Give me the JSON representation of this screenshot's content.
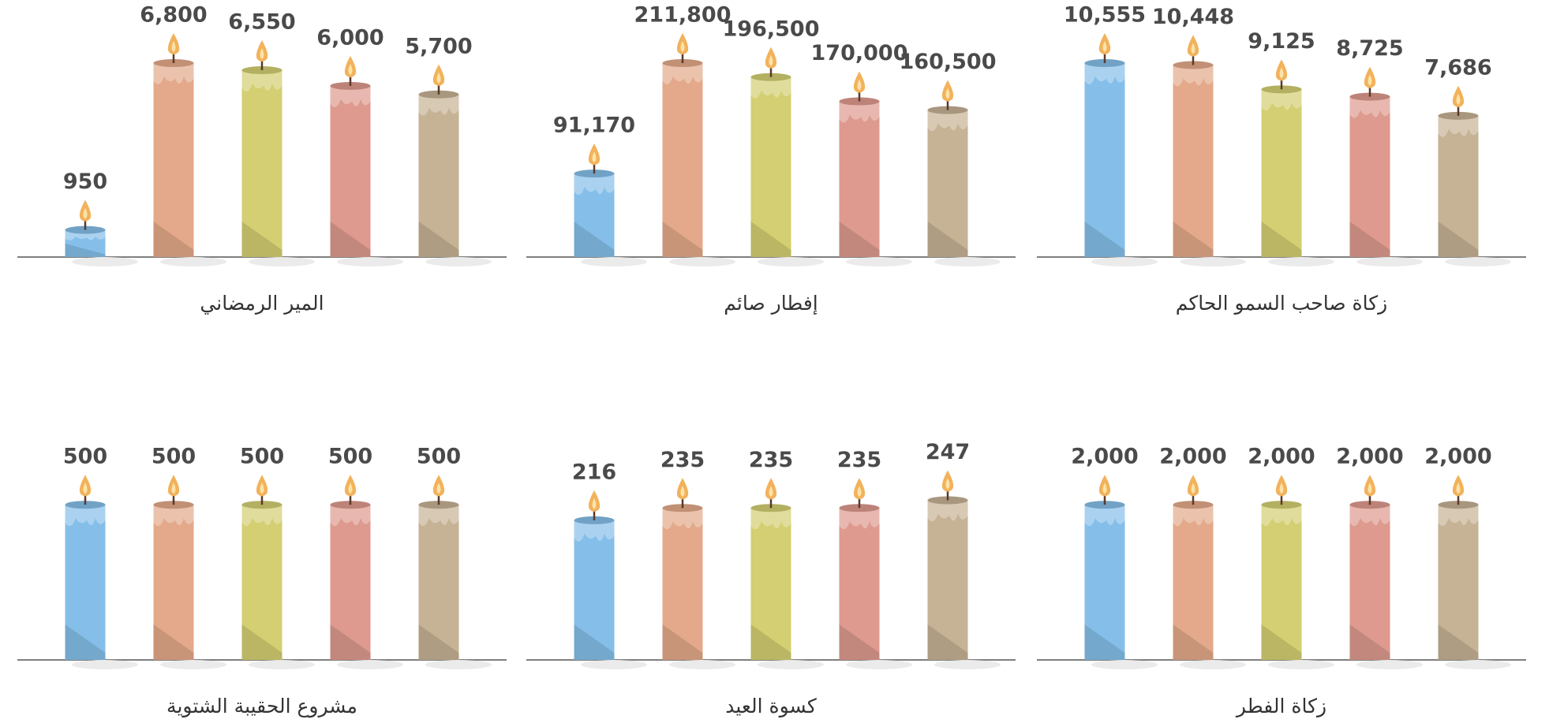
{
  "chart_data": [
    {
      "type": "bar",
      "title": "زكاة صاحب السمو الحاكم",
      "values": [
        10555,
        10448,
        9125,
        8725,
        7686
      ],
      "value_labels": [
        "10,555",
        "10,448",
        "9,125",
        "8,725",
        "7,686"
      ],
      "colors": [
        "#85bfe9",
        "#e3a98a",
        "#d3cf72",
        "#de9a8e",
        "#c6b294"
      ],
      "ylim": [
        0,
        10555
      ]
    },
    {
      "type": "bar",
      "title": "إفطار صائم",
      "values": [
        91170,
        211800,
        196500,
        170000,
        160500
      ],
      "value_labels": [
        "91,170",
        "211,800",
        "196,500",
        "170,000",
        "160,500"
      ],
      "colors": [
        "#85bfe9",
        "#e3a98a",
        "#d3cf72",
        "#de9a8e",
        "#c6b294"
      ],
      "ylim": [
        0,
        211800
      ]
    },
    {
      "type": "bar",
      "title": "المير الرمضاني",
      "values": [
        950,
        6800,
        6550,
        6000,
        5700
      ],
      "value_labels": [
        "950",
        "6,800",
        "6,550",
        "6,000",
        "5,700"
      ],
      "colors": [
        "#85bfe9",
        "#e3a98a",
        "#d3cf72",
        "#de9a8e",
        "#c6b294"
      ],
      "ylim": [
        0,
        6800
      ]
    },
    {
      "type": "bar",
      "title": "زكاة الفطر",
      "values": [
        2000,
        2000,
        2000,
        2000,
        2000
      ],
      "value_labels": [
        "2,000",
        "2,000",
        "2,000",
        "2,000",
        "2,000"
      ],
      "colors": [
        "#85bfe9",
        "#e3a98a",
        "#d3cf72",
        "#de9a8e",
        "#c6b294"
      ],
      "ylim": [
        0,
        2500
      ]
    },
    {
      "type": "bar",
      "title": "كسوة العيد",
      "values": [
        216,
        235,
        235,
        235,
        247
      ],
      "colors": [
        "#85bfe9",
        "#e3a98a",
        "#d3cf72",
        "#de9a8e",
        "#c6b294"
      ],
      "ylim": [
        0,
        300
      ]
    },
    {
      "type": "bar",
      "title": "مشروع الحقيبة الشتوية",
      "values": [
        500,
        500,
        500,
        500,
        500
      ],
      "colors": [
        "#85bfe9",
        "#e3a98a",
        "#d3cf72",
        "#de9a8e",
        "#c6b294"
      ],
      "ylim": [
        0,
        625
      ]
    }
  ]
}
